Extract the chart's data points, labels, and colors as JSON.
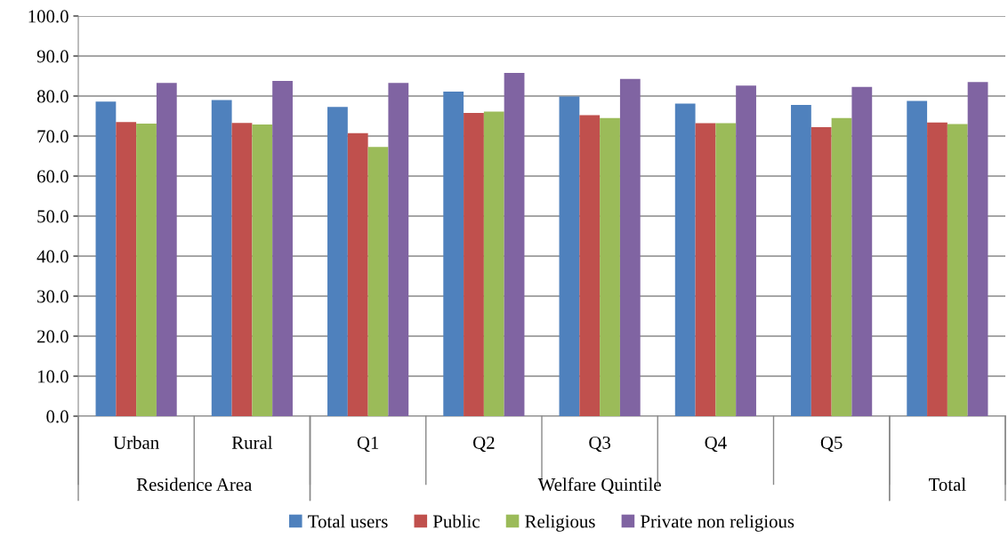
{
  "chart_data": {
    "type": "bar",
    "categories": [
      "Urban",
      "Rural",
      "Q1",
      "Q2",
      "Q3",
      "Q4",
      "Q5",
      null
    ],
    "series": [
      {
        "name": "Total users",
        "color": "#4f81bd",
        "values": [
          78.6,
          79.0,
          77.3,
          81.1,
          79.9,
          78.1,
          77.8,
          78.8
        ]
      },
      {
        "name": "Public",
        "color": "#c0504d",
        "values": [
          73.5,
          73.3,
          70.7,
          75.8,
          75.2,
          73.2,
          72.2,
          73.4
        ]
      },
      {
        "name": "Religious",
        "color": "#9bbb59",
        "values": [
          73.1,
          72.9,
          67.3,
          76.1,
          74.5,
          73.2,
          74.5,
          73.0
        ]
      },
      {
        "name": "Private non religious",
        "color": "#8064a2",
        "values": [
          83.3,
          83.8,
          83.3,
          85.8,
          84.3,
          82.6,
          82.3,
          83.5
        ]
      }
    ],
    "annotations": [
      "Residence Area",
      "Welfare Quintile",
      "Total"
    ],
    "ylim": [
      0,
      100
    ],
    "yticks": [
      {
        "value": 0,
        "label": "0.0"
      },
      {
        "value": 10,
        "label": "10.0"
      },
      {
        "value": 20,
        "label": "20.0"
      },
      {
        "value": 30,
        "label": "30.0"
      },
      {
        "value": 40,
        "label": "40.0"
      },
      {
        "value": 50,
        "label": "50.0"
      },
      {
        "value": 60,
        "label": "60.0"
      },
      {
        "value": 70,
        "label": "70.0"
      },
      {
        "value": 80,
        "label": "80.0"
      },
      {
        "value": 90,
        "label": "90.0"
      },
      {
        "value": 100,
        "label": "100.0"
      }
    ],
    "grid": "y",
    "legend": "bottom"
  }
}
